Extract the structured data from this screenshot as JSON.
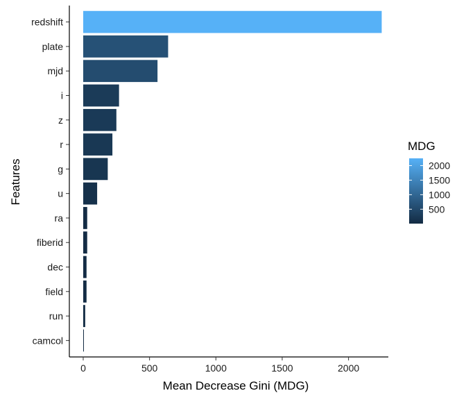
{
  "chart_data": {
    "type": "bar",
    "orientation": "horizontal",
    "xlabel": "Mean Decrease Gini (MDG)",
    "ylabel": "Features",
    "xlim": [
      0,
      2300
    ],
    "x_ticks": [
      0,
      500,
      1000,
      1500,
      2000
    ],
    "categories": [
      "redshift",
      "plate",
      "mjd",
      "i",
      "z",
      "r",
      "g",
      "u",
      "ra",
      "fiberid",
      "dec",
      "field",
      "run",
      "camcol"
    ],
    "values": [
      2250,
      640,
      560,
      270,
      250,
      220,
      185,
      105,
      30,
      30,
      25,
      25,
      15,
      5
    ],
    "legend": {
      "title": "MDG",
      "placement": "right",
      "ticks": [
        500,
        1000,
        1500,
        2000
      ],
      "range": [
        5,
        2250
      ],
      "color_low": "#132B43",
      "color_high": "#56B1F7"
    },
    "grid": false
  }
}
